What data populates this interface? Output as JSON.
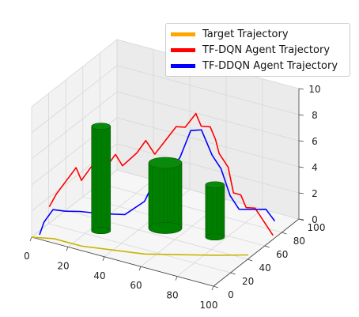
{
  "chart_data": {
    "type": "line3d",
    "title": "",
    "xlim": [
      0,
      100
    ],
    "ylim": [
      0,
      100
    ],
    "zlim": [
      0,
      10
    ],
    "xticks": [
      0,
      20,
      40,
      60,
      80,
      100
    ],
    "yticks": [
      0,
      20,
      40,
      60,
      80,
      100
    ],
    "zticks": [
      0,
      2,
      4,
      6,
      8,
      10
    ],
    "grid": true,
    "legend_position": "top-right",
    "series": [
      {
        "name": "Target Trajectory",
        "color": "#FFA500",
        "points": [
          [
            0,
            0,
            0
          ],
          [
            10,
            5,
            0
          ],
          [
            25,
            5,
            0
          ],
          [
            40,
            10,
            0
          ],
          [
            55,
            15,
            0
          ],
          [
            70,
            25,
            0
          ],
          [
            85,
            35,
            0
          ],
          [
            98,
            45,
            0
          ]
        ]
      },
      {
        "name": "TF-DQN Agent Trajectory",
        "color": "#FF0000",
        "points": [
          [
            5,
            10,
            2
          ],
          [
            8,
            12,
            3
          ],
          [
            12,
            15,
            4
          ],
          [
            16,
            18,
            5
          ],
          [
            18,
            20,
            4
          ],
          [
            22,
            22,
            5
          ],
          [
            26,
            26,
            6
          ],
          [
            28,
            28,
            5
          ],
          [
            32,
            30,
            6
          ],
          [
            34,
            34,
            5
          ],
          [
            40,
            38,
            6
          ],
          [
            44,
            40,
            7
          ],
          [
            48,
            42,
            6
          ],
          [
            52,
            46,
            7
          ],
          [
            56,
            50,
            8
          ],
          [
            60,
            52,
            8
          ],
          [
            64,
            56,
            9
          ],
          [
            66,
            58,
            8
          ],
          [
            70,
            60,
            8
          ],
          [
            72,
            62,
            7
          ],
          [
            74,
            62,
            6
          ],
          [
            78,
            64,
            5
          ],
          [
            80,
            66,
            3
          ],
          [
            84,
            66,
            3
          ],
          [
            86,
            68,
            2
          ],
          [
            90,
            70,
            2
          ],
          [
            94,
            72,
            1
          ],
          [
            98,
            74,
            0
          ]
        ]
      },
      {
        "name": "TF-DDQN Agent Trajectory",
        "color": "#0000FF",
        "points": [
          [
            2,
            5,
            0
          ],
          [
            4,
            6,
            1
          ],
          [
            8,
            8,
            2
          ],
          [
            14,
            10,
            2
          ],
          [
            20,
            14,
            2
          ],
          [
            30,
            18,
            2
          ],
          [
            40,
            24,
            2
          ],
          [
            48,
            30,
            3
          ],
          [
            50,
            34,
            4
          ],
          [
            52,
            38,
            5
          ],
          [
            56,
            42,
            5
          ],
          [
            60,
            46,
            6
          ],
          [
            62,
            48,
            7
          ],
          [
            64,
            50,
            8
          ],
          [
            66,
            52,
            8
          ],
          [
            68,
            54,
            8
          ],
          [
            70,
            56,
            7
          ],
          [
            72,
            58,
            6
          ],
          [
            76,
            60,
            5
          ],
          [
            80,
            62,
            3
          ],
          [
            84,
            64,
            2
          ],
          [
            90,
            68,
            2
          ],
          [
            95,
            72,
            2
          ],
          [
            98,
            76,
            1
          ]
        ]
      }
    ],
    "obstacles": [
      {
        "label": "obstacle",
        "color": "#008000",
        "center": [
          25,
          28
        ],
        "radius": 4,
        "height": 8
      },
      {
        "label": "obstacle",
        "color": "#008000",
        "center": [
          50,
          50
        ],
        "radius": 7,
        "height": 5
      },
      {
        "label": "obstacle",
        "color": "#008000",
        "center": [
          75,
          55
        ],
        "radius": 4,
        "height": 4
      }
    ]
  },
  "legend": {
    "items": [
      {
        "label": "Target Trajectory",
        "color": "#FFA500"
      },
      {
        "label": "TF-DQN Agent Trajectory",
        "color": "#FF0000"
      },
      {
        "label": "TF-DDQN Agent Trajectory",
        "color": "#0000FF"
      }
    ]
  },
  "axis_tick_labels": {
    "x": [
      "0",
      "20",
      "40",
      "60",
      "80",
      "100"
    ],
    "y": [
      "0",
      "20",
      "40",
      "60",
      "80",
      "100"
    ],
    "z": [
      "0",
      "2",
      "4",
      "6",
      "8",
      "10"
    ]
  }
}
